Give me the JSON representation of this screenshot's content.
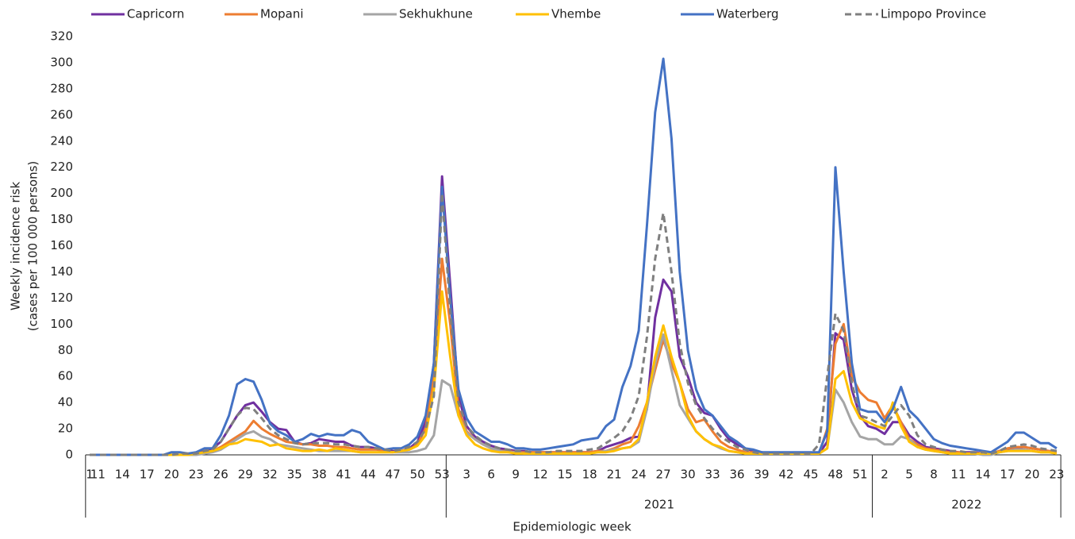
{
  "chart_data": {
    "type": "line",
    "x_label": "Epidemiologic week",
    "y_label": [
      "Weekly incidence risk",
      "(cases  per 100 000 persons)"
    ],
    "ylim": [
      0,
      320
    ],
    "yticks": [
      0,
      20,
      40,
      60,
      80,
      100,
      120,
      140,
      160,
      180,
      200,
      220,
      240,
      260,
      280,
      300,
      320
    ],
    "categories": [
      "1",
      "11",
      null,
      null,
      "14",
      null,
      null,
      "17",
      null,
      null,
      "20",
      null,
      null,
      "23",
      null,
      null,
      "26",
      null,
      null,
      "29",
      null,
      null,
      "32",
      null,
      null,
      "35",
      null,
      null,
      "38",
      null,
      null,
      "41",
      null,
      null,
      "44",
      null,
      null,
      "47",
      null,
      null,
      "50",
      null,
      null,
      "53",
      null,
      null,
      "3",
      null,
      null,
      "6",
      null,
      null,
      "9",
      null,
      null,
      "12",
      null,
      null,
      "15",
      null,
      null,
      "18",
      null,
      null,
      "21",
      null,
      null,
      "24",
      null,
      null,
      "27",
      null,
      null,
      "30",
      null,
      null,
      "33",
      null,
      null,
      "36",
      null,
      null,
      "39",
      null,
      null,
      "42",
      null,
      null,
      "45",
      null,
      null,
      "48",
      null,
      null,
      "51",
      null,
      null,
      "2",
      null,
      null,
      "5",
      null,
      null,
      "8",
      null,
      null,
      "11",
      null,
      null,
      "14",
      null,
      null,
      "17",
      null,
      null,
      "20",
      null,
      null,
      "23"
    ],
    "x_groups": [
      {
        "label": null,
        "count": 44
      },
      {
        "label": "2021",
        "count": 52
      },
      {
        "label": "2022",
        "count": 23
      }
    ],
    "series": [
      {
        "name": "Capricorn",
        "color": "#7030a0",
        "dashed": false,
        "values": [
          0,
          0,
          0,
          0,
          0,
          0,
          0,
          0,
          0,
          0,
          0,
          0,
          0,
          1,
          3,
          5,
          10,
          20,
          30,
          38,
          40,
          33,
          25,
          20,
          19,
          10,
          8,
          9,
          12,
          11,
          10,
          10,
          7,
          6,
          6,
          5,
          4,
          3,
          3,
          5,
          10,
          25,
          70,
          213,
          130,
          45,
          22,
          14,
          10,
          7,
          5,
          4,
          3,
          3,
          2,
          2,
          2,
          2,
          2,
          2,
          2,
          2,
          3,
          6,
          8,
          10,
          13,
          14,
          35,
          105,
          134,
          125,
          75,
          60,
          40,
          32,
          30,
          20,
          12,
          8,
          5,
          3,
          2,
          1,
          1,
          1,
          1,
          1,
          1,
          1,
          10,
          93,
          88,
          50,
          30,
          22,
          20,
          16,
          25,
          25,
          15,
          10,
          6,
          5,
          4,
          3,
          2,
          2,
          2,
          1,
          1,
          2,
          4,
          5,
          6,
          5,
          4,
          3,
          2
        ]
      },
      {
        "name": "Mopani",
        "color": "#ed7d31",
        "dashed": false,
        "values": [
          0,
          0,
          0,
          0,
          0,
          0,
          0,
          0,
          0,
          0,
          0,
          0,
          0,
          1,
          2,
          3,
          6,
          10,
          14,
          18,
          26,
          20,
          16,
          13,
          10,
          9,
          8,
          8,
          7,
          7,
          6,
          6,
          5,
          4,
          4,
          4,
          3,
          2,
          3,
          4,
          8,
          20,
          60,
          150,
          100,
          35,
          18,
          12,
          8,
          5,
          3,
          3,
          2,
          2,
          2,
          2,
          2,
          2,
          2,
          2,
          2,
          2,
          3,
          3,
          5,
          8,
          10,
          22,
          40,
          65,
          88,
          70,
          55,
          35,
          25,
          27,
          18,
          10,
          6,
          4,
          2,
          2,
          1,
          1,
          1,
          1,
          1,
          1,
          1,
          1,
          20,
          85,
          100,
          60,
          48,
          42,
          40,
          28,
          38,
          25,
          12,
          8,
          5,
          4,
          3,
          2,
          2,
          1,
          1,
          1,
          1,
          3,
          5,
          6,
          6,
          5,
          4,
          3,
          2
        ]
      },
      {
        "name": "Sekhukhune",
        "color": "#a5a5a5",
        "dashed": false,
        "values": [
          0,
          0,
          0,
          0,
          0,
          0,
          0,
          0,
          0,
          0,
          0,
          0,
          0,
          0,
          1,
          2,
          4,
          8,
          12,
          16,
          18,
          14,
          12,
          8,
          7,
          6,
          5,
          4,
          3,
          3,
          3,
          3,
          3,
          2,
          2,
          2,
          2,
          2,
          2,
          2,
          3,
          5,
          15,
          57,
          53,
          30,
          17,
          12,
          8,
          5,
          3,
          2,
          2,
          1,
          1,
          1,
          1,
          1,
          1,
          1,
          1,
          1,
          2,
          3,
          4,
          5,
          6,
          10,
          35,
          70,
          92,
          65,
          38,
          28,
          18,
          12,
          8,
          5,
          3,
          2,
          1,
          1,
          1,
          1,
          1,
          1,
          1,
          1,
          1,
          1,
          5,
          50,
          40,
          25,
          14,
          12,
          12,
          8,
          8,
          14,
          12,
          6,
          4,
          3,
          2,
          1,
          1,
          1,
          1,
          0,
          0,
          2,
          3,
          4,
          4,
          3,
          2,
          2,
          1
        ]
      },
      {
        "name": "Vhembe",
        "color": "#ffc000",
        "dashed": false,
        "values": [
          0,
          0,
          0,
          0,
          0,
          0,
          0,
          0,
          0,
          0,
          0,
          0,
          0,
          1,
          2,
          3,
          5,
          8,
          9,
          12,
          11,
          10,
          7,
          8,
          5,
          4,
          3,
          3,
          4,
          3,
          5,
          4,
          3,
          2,
          2,
          2,
          2,
          2,
          3,
          4,
          7,
          15,
          50,
          125,
          75,
          30,
          15,
          8,
          5,
          3,
          2,
          2,
          1,
          1,
          1,
          1,
          1,
          1,
          1,
          1,
          1,
          1,
          2,
          2,
          3,
          5,
          6,
          12,
          40,
          75,
          99,
          75,
          55,
          30,
          18,
          12,
          8,
          6,
          3,
          2,
          1,
          1,
          1,
          1,
          1,
          1,
          1,
          1,
          1,
          1,
          5,
          58,
          64,
          40,
          28,
          25,
          22,
          20,
          40,
          22,
          10,
          6,
          4,
          3,
          2,
          1,
          1,
          1,
          1,
          1,
          1,
          2,
          3,
          3,
          3,
          3,
          2,
          2,
          1
        ]
      },
      {
        "name": "Waterberg",
        "color": "#4472c4",
        "dashed": false,
        "values": [
          0,
          0,
          0,
          0,
          0,
          0,
          0,
          0,
          0,
          0,
          2,
          2,
          1,
          2,
          5,
          5,
          15,
          30,
          54,
          58,
          56,
          42,
          24,
          18,
          15,
          10,
          12,
          16,
          14,
          16,
          15,
          15,
          19,
          17,
          10,
          7,
          4,
          5,
          5,
          8,
          14,
          30,
          70,
          205,
          120,
          50,
          28,
          18,
          14,
          10,
          10,
          8,
          5,
          5,
          4,
          4,
          5,
          6,
          7,
          8,
          11,
          12,
          13,
          22,
          27,
          52,
          68,
          95,
          175,
          262,
          303,
          242,
          140,
          80,
          50,
          35,
          30,
          22,
          14,
          10,
          5,
          4,
          2,
          2,
          2,
          2,
          2,
          2,
          2,
          2,
          18,
          220,
          140,
          70,
          35,
          33,
          33,
          25,
          35,
          52,
          34,
          28,
          20,
          12,
          9,
          7,
          6,
          5,
          4,
          3,
          2,
          6,
          10,
          17,
          17,
          13,
          9,
          9,
          5
        ]
      },
      {
        "name": "Limpopo Province",
        "color": "#7f7f7f",
        "dashed": true,
        "values": [
          0,
          0,
          0,
          0,
          0,
          0,
          0,
          0,
          0,
          0,
          0,
          1,
          1,
          1,
          3,
          4,
          10,
          20,
          30,
          36,
          35,
          28,
          20,
          15,
          12,
          9,
          8,
          9,
          9,
          9,
          8,
          8,
          7,
          6,
          6,
          5,
          4,
          3,
          4,
          6,
          10,
          20,
          45,
          200,
          110,
          40,
          22,
          15,
          10,
          7,
          5,
          4,
          3,
          3,
          2,
          2,
          2,
          3,
          3,
          3,
          3,
          4,
          5,
          9,
          13,
          18,
          28,
          45,
          90,
          150,
          185,
          140,
          85,
          55,
          38,
          28,
          20,
          14,
          10,
          6,
          4,
          2,
          1,
          1,
          1,
          1,
          1,
          1,
          1,
          8,
          60,
          108,
          95,
          55,
          30,
          28,
          25,
          22,
          30,
          38,
          30,
          15,
          8,
          6,
          4,
          3,
          3,
          2,
          2,
          2,
          1,
          3,
          6,
          7,
          8,
          7,
          5,
          4,
          3
        ]
      }
    ]
  }
}
